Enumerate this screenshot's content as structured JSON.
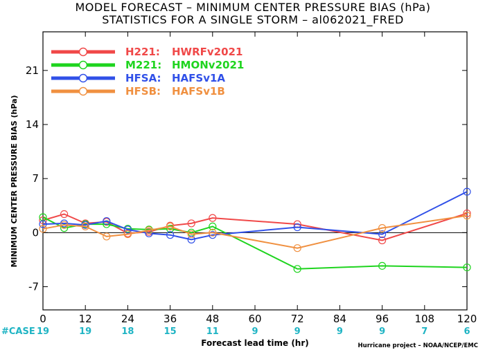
{
  "chart_data": {
    "type": "line",
    "title": "MODEL FORECAST – MINIMUM CENTER PRESSURE BIAS (hPa)",
    "subtitle": "STATISTICS FOR A SINGLE STORM – al062021_FRED",
    "xlabel": "Forecast lead time (hr)",
    "ylabel": "MINIMUM CENTER PRESSURE BIAS (hPa)",
    "xlim": [
      0,
      120
    ],
    "ylim": [
      -10,
      26
    ],
    "xticks": [
      "0",
      "12",
      "24",
      "36",
      "48",
      "60",
      "72",
      "84",
      "96",
      "108",
      "120"
    ],
    "yticks": [
      "-7",
      "0",
      "7",
      "14",
      "21"
    ],
    "grid": false,
    "legend_position": "top-left",
    "case_label": "#CASE",
    "case_color": "#1fb4c4",
    "cases": [
      "19",
      "19",
      "18",
      "15",
      "11",
      "9",
      "9",
      "9",
      "9",
      "7",
      "6"
    ],
    "credit": "Hurricane project – NOAA/NCEP/EMC",
    "series": [
      {
        "code": "H221:",
        "name": "HWRFv2021",
        "color": "#f04848",
        "x": [
          0,
          6,
          12,
          18,
          24,
          30,
          36,
          42,
          48,
          72,
          96,
          120
        ],
        "y": [
          1.6,
          2.4,
          1.2,
          1.4,
          -0.1,
          0.1,
          0.9,
          1.2,
          1.9,
          1.1,
          -1.0,
          2.5
        ]
      },
      {
        "code": "M221:",
        "name": "HMONv2021",
        "color": "#1ed41e",
        "x": [
          0,
          6,
          12,
          18,
          24,
          30,
          36,
          42,
          48,
          72,
          96,
          120
        ],
        "y": [
          2.0,
          0.6,
          1.1,
          1.1,
          0.5,
          0.4,
          0.5,
          0.0,
          0.8,
          -4.7,
          -4.3,
          -4.5
        ]
      },
      {
        "code": "HFSA:",
        "name": "HAFSv1A",
        "color": "#3050e8",
        "x": [
          0,
          6,
          12,
          18,
          24,
          30,
          36,
          42,
          48,
          72,
          96,
          120
        ],
        "y": [
          1.1,
          1.2,
          1.0,
          1.5,
          0.4,
          -0.1,
          -0.3,
          -0.9,
          -0.3,
          0.7,
          -0.2,
          5.3
        ]
      },
      {
        "code": "HFSB:",
        "name": "HAFSv1B",
        "color": "#f09040",
        "x": [
          0,
          6,
          12,
          18,
          24,
          30,
          36,
          42,
          48,
          72,
          96,
          120
        ],
        "y": [
          0.5,
          1.0,
          0.8,
          -0.5,
          -0.2,
          0.3,
          0.8,
          -0.2,
          0.0,
          -2.0,
          0.6,
          2.2
        ]
      }
    ]
  }
}
